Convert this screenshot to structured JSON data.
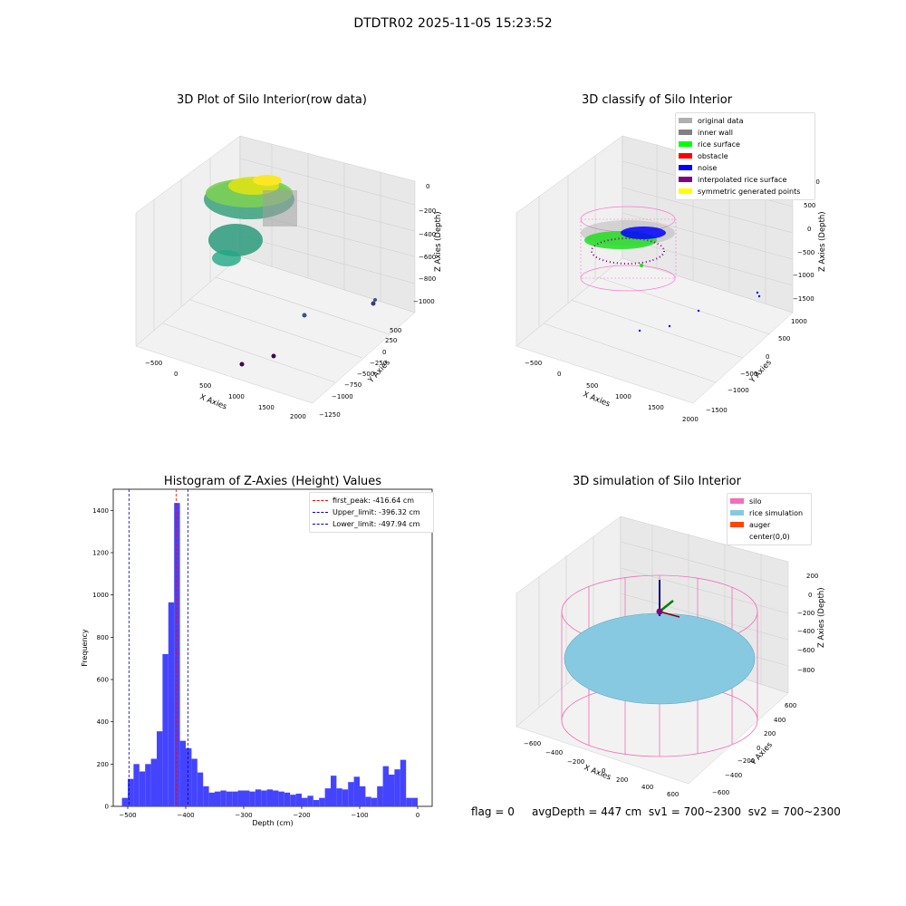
{
  "figure": {
    "suptitle": "DTDTR02 2025-11-05 15:23:52",
    "status": {
      "flag": "flag = 0",
      "avg_depth": "avgDepth = 447 cm",
      "sv1": "sv1 = 700~2300",
      "sv2": "sv2 = 700~2300"
    }
  },
  "colors": {
    "hist_bar": "#4444ff",
    "first_peak_line": "#ff0000",
    "limit_lines": "#0000aa",
    "silo_wire": "#f26fb6",
    "rice_sim": "#87c9e0",
    "auger": "#ff4500",
    "pane": "#f0f0f0"
  },
  "chart_data": [
    {
      "type": "scatter",
      "projection": "3d",
      "title": "3D Plot of Silo Interior(row data)",
      "xlabel": "X Axies",
      "ylabel": "Y Axies",
      "zlabel": "Z Axies (Depth)",
      "x_ticks": [
        "−500",
        "0",
        "500",
        "1000",
        "1500",
        "2000"
      ],
      "y_ticks": [
        "500",
        "250",
        "0",
        "−250",
        "−500",
        "−750",
        "−1000",
        "−1250"
      ],
      "z_ticks": [
        "0",
        "−200",
        "−400",
        "−600",
        "−800",
        "−1000"
      ],
      "colormap": "viridis",
      "grid": true
    },
    {
      "type": "scatter",
      "projection": "3d",
      "title": "3D classify of Silo Interior",
      "xlabel": "X Axies",
      "ylabel": "Y Axies",
      "zlabel": "Z Axies (Depth)",
      "x_ticks": [
        "−500",
        "0",
        "500",
        "1000",
        "1500",
        "2000"
      ],
      "y_ticks": [
        "1000",
        "500",
        "0",
        "−500",
        "−1000",
        "−1500"
      ],
      "z_ticks": [
        "1000",
        "500",
        "0",
        "−500",
        "−1000",
        "−1500"
      ],
      "legend_position": "top-right",
      "legend": [
        {
          "label": "original data",
          "color": "#b0b0b0"
        },
        {
          "label": "inner wall",
          "color": "#808080"
        },
        {
          "label": "rice surface",
          "color": "#00ff00"
        },
        {
          "label": "obstacle",
          "color": "#ff0000"
        },
        {
          "label": "noise",
          "color": "#0000ff"
        },
        {
          "label": "interpolated rice surface",
          "color": "#800080"
        },
        {
          "label": "symmetric generated points",
          "color": "#ffff00"
        }
      ],
      "grid": true
    },
    {
      "type": "bar",
      "title": "Histogram of Z-Axies (Height) Values",
      "xlabel": "Depth (cm)",
      "ylabel": "Frequency",
      "xlim": [
        -525,
        25
      ],
      "ylim": [
        0,
        1500
      ],
      "x_ticks": [
        -500,
        -400,
        -300,
        -200,
        -100,
        0
      ],
      "y_ticks": [
        0,
        200,
        400,
        600,
        800,
        1000,
        1200,
        1400
      ],
      "bin_width": 10,
      "bin_starts": [
        -510,
        -500,
        -490,
        -480,
        -470,
        -460,
        -450,
        -440,
        -430,
        -420,
        -410,
        -400,
        -390,
        -380,
        -370,
        -360,
        -350,
        -340,
        -330,
        -320,
        -310,
        -300,
        -290,
        -280,
        -270,
        -260,
        -250,
        -240,
        -230,
        -220,
        -210,
        -200,
        -190,
        -180,
        -170,
        -160,
        -150,
        -140,
        -130,
        -120,
        -110,
        -100,
        -90,
        -80,
        -70,
        -60,
        -50,
        -40,
        -30,
        -20,
        -10
      ],
      "values": [
        40,
        130,
        200,
        165,
        200,
        225,
        355,
        720,
        965,
        1435,
        310,
        275,
        225,
        160,
        95,
        65,
        70,
        75,
        70,
        70,
        75,
        75,
        70,
        80,
        75,
        80,
        75,
        70,
        65,
        55,
        60,
        40,
        50,
        30,
        40,
        85,
        145,
        85,
        80,
        115,
        140,
        95,
        45,
        40,
        95,
        190,
        150,
        175,
        220,
        40,
        40
      ],
      "reference_lines": [
        {
          "label": "first_peak: -416.64 cm",
          "x": -416.64,
          "color": "#ff0000"
        },
        {
          "label": "Upper_limit: -396.32 cm",
          "x": -396.32,
          "color": "#0000aa"
        },
        {
          "label": "Lower_limit: -497.94 cm",
          "x": -497.94,
          "color": "#0000aa"
        }
      ],
      "legend_position": "top-right",
      "grid": false
    },
    {
      "type": "scatter",
      "projection": "3d",
      "title": "3D simulation of Silo Interior",
      "xlabel": "X Axies",
      "ylabel": "Y Axies",
      "zlabel": "Z Axies (Depth)",
      "x_ticks": [
        "−600",
        "−400",
        "−200",
        "0",
        "200",
        "400",
        "600"
      ],
      "y_ticks": [
        "600",
        "400",
        "200",
        "0",
        "−200",
        "−400",
        "−600"
      ],
      "z_ticks": [
        "200",
        "0",
        "−200",
        "−400",
        "−600",
        "−800"
      ],
      "legend_position": "top-right",
      "legend": [
        {
          "label": "silo",
          "color": "#f26fb6"
        },
        {
          "label": "rice simulation",
          "color": "#87c9e0"
        },
        {
          "label": "auger",
          "color": "#ff4500"
        },
        {
          "label": "center(0,0)",
          "color": "#ffffff"
        }
      ],
      "grid": true
    }
  ]
}
